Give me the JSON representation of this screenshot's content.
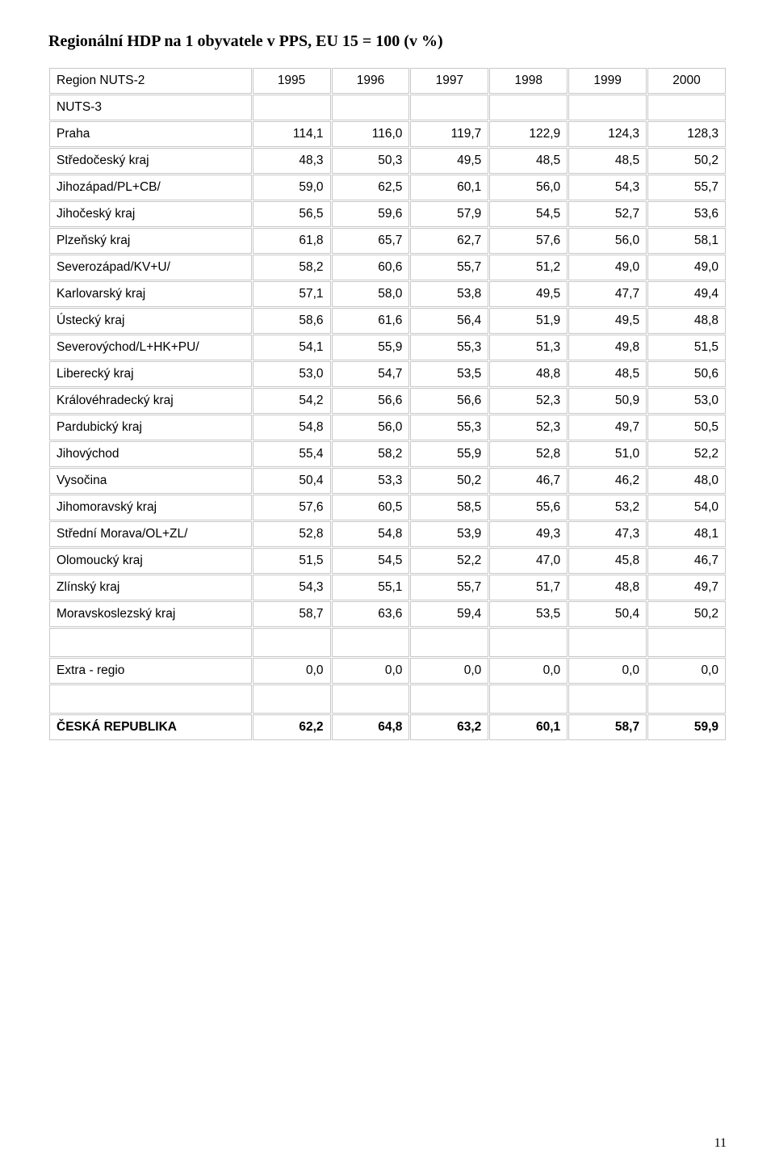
{
  "title": "Regionální HDP na 1 obyvatele v PPS, EU 15 = 100 (v %)",
  "page_number": "11",
  "table": {
    "border_color": "#c8c8c8",
    "background_color": "#ffffff",
    "font_family_heading": "Times New Roman",
    "font_family_body": "Arial",
    "header": {
      "col0": "Region NUTS-2",
      "years": [
        "1995",
        "1996",
        "1997",
        "1998",
        "1999",
        "2000"
      ]
    },
    "subheader": "NUTS-3",
    "rows": [
      {
        "label": "Praha",
        "values": [
          "114,1",
          "116,0",
          "119,7",
          "122,9",
          "124,3",
          "128,3"
        ]
      },
      {
        "label": "Středočeský kraj",
        "values": [
          "48,3",
          "50,3",
          "49,5",
          "48,5",
          "48,5",
          "50,2"
        ]
      },
      {
        "label": "Jihozápad/PL+CB/",
        "values": [
          "59,0",
          "62,5",
          "60,1",
          "56,0",
          "54,3",
          "55,7"
        ]
      },
      {
        "label": "Jihočeský kraj",
        "values": [
          "56,5",
          "59,6",
          "57,9",
          "54,5",
          "52,7",
          "53,6"
        ]
      },
      {
        "label": "Plzeňský kraj",
        "values": [
          "61,8",
          "65,7",
          "62,7",
          "57,6",
          "56,0",
          "58,1"
        ]
      },
      {
        "label": "Severozápad/KV+U/",
        "values": [
          "58,2",
          "60,6",
          "55,7",
          "51,2",
          "49,0",
          "49,0"
        ]
      },
      {
        "label": "Karlovarský kraj",
        "values": [
          "57,1",
          "58,0",
          "53,8",
          "49,5",
          "47,7",
          "49,4"
        ]
      },
      {
        "label": "Ústecký kraj",
        "values": [
          "58,6",
          "61,6",
          "56,4",
          "51,9",
          "49,5",
          "48,8"
        ]
      },
      {
        "label": "Severovýchod/L+HK+PU/",
        "values": [
          "54,1",
          "55,9",
          "55,3",
          "51,3",
          "49,8",
          "51,5"
        ]
      },
      {
        "label": "Liberecký kraj",
        "values": [
          "53,0",
          "54,7",
          "53,5",
          "48,8",
          "48,5",
          "50,6"
        ]
      },
      {
        "label": "Královéhradecký kraj",
        "values": [
          "54,2",
          "56,6",
          "56,6",
          "52,3",
          "50,9",
          "53,0"
        ]
      },
      {
        "label": "Pardubický kraj",
        "values": [
          "54,8",
          "56,0",
          "55,3",
          "52,3",
          "49,7",
          "50,5"
        ]
      },
      {
        "label": "Jihovýchod",
        "values": [
          "55,4",
          "58,2",
          "55,9",
          "52,8",
          "51,0",
          "52,2"
        ]
      },
      {
        "label": "Vysočina",
        "values": [
          "50,4",
          "53,3",
          "50,2",
          "46,7",
          "46,2",
          "48,0"
        ]
      },
      {
        "label": "Jihomoravský kraj",
        "values": [
          "57,6",
          "60,5",
          "58,5",
          "55,6",
          "53,2",
          "54,0"
        ]
      },
      {
        "label": "Střední Morava/OL+ZL/",
        "values": [
          "52,8",
          "54,8",
          "53,9",
          "49,3",
          "47,3",
          "48,1"
        ]
      },
      {
        "label": "Olomoucký kraj",
        "values": [
          "51,5",
          "54,5",
          "52,2",
          "47,0",
          "45,8",
          "46,7"
        ]
      },
      {
        "label": "Zlínský kraj",
        "values": [
          "54,3",
          "55,1",
          "55,7",
          "51,7",
          "48,8",
          "49,7"
        ]
      },
      {
        "label": "Moravskoslezský kraj",
        "values": [
          "58,7",
          "63,6",
          "59,4",
          "53,5",
          "50,4",
          "50,2"
        ]
      }
    ],
    "extra": {
      "label": "Extra - regio",
      "values": [
        "0,0",
        "0,0",
        "0,0",
        "0,0",
        "0,0",
        "0,0"
      ]
    },
    "total": {
      "label": "ČESKÁ REPUBLIKA",
      "values": [
        "62,2",
        "64,8",
        "63,2",
        "60,1",
        "58,7",
        "59,9"
      ]
    }
  }
}
